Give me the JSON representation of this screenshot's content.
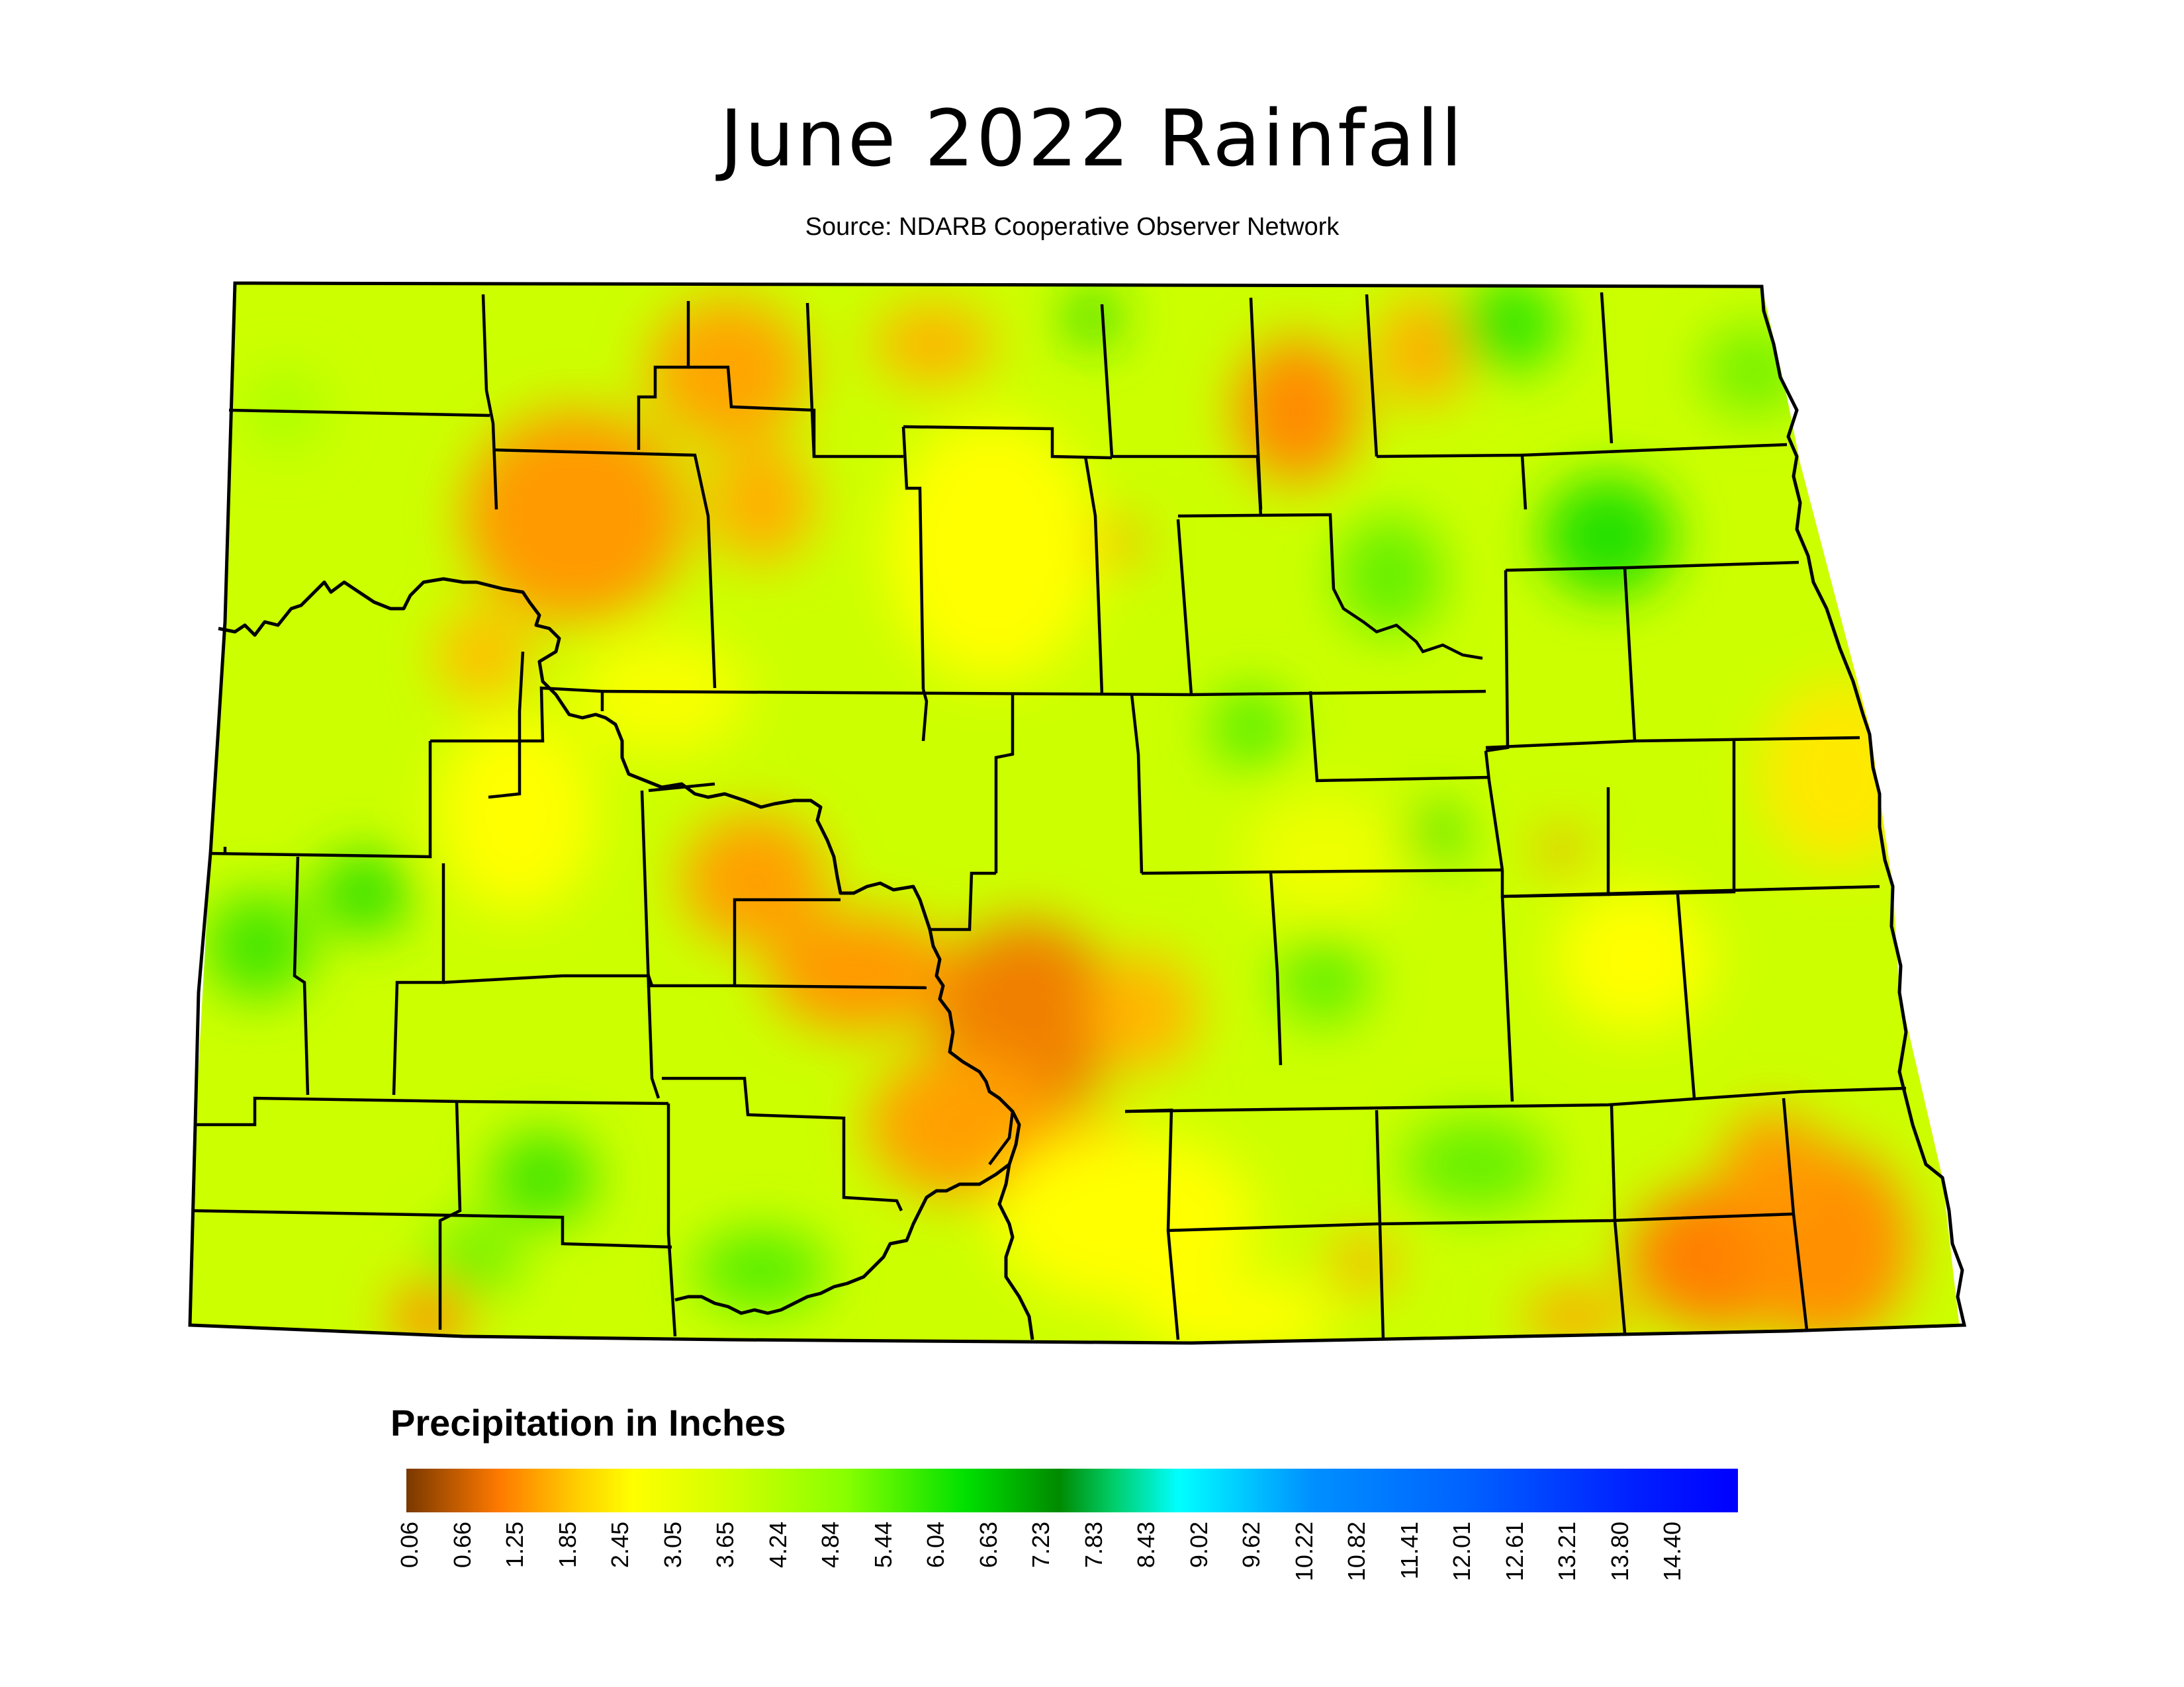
{
  "title": "June 2022 Rainfall",
  "subtitle": "Source: NDARB Cooperative Observer Network",
  "legend": {
    "title": "Precipitation in Inches",
    "ticks": [
      "0.06",
      "0.66",
      "1.25",
      "1.85",
      "2.45",
      "3.05",
      "3.65",
      "4.24",
      "4.84",
      "5.44",
      "6.04",
      "6.63",
      "7.23",
      "7.83",
      "8.43",
      "9.02",
      "9.62",
      "10.22",
      "10.82",
      "11.41",
      "12.01",
      "12.61",
      "13.21",
      "13.80",
      "14.40"
    ]
  },
  "colors": {
    "background_field": "#ccff00",
    "driest": "#7a3800",
    "dry": "#ff8c00",
    "moderate": "#ffff00",
    "wet": "#00e000",
    "wettest": "#0000ff",
    "county_lines": "#000000"
  }
}
